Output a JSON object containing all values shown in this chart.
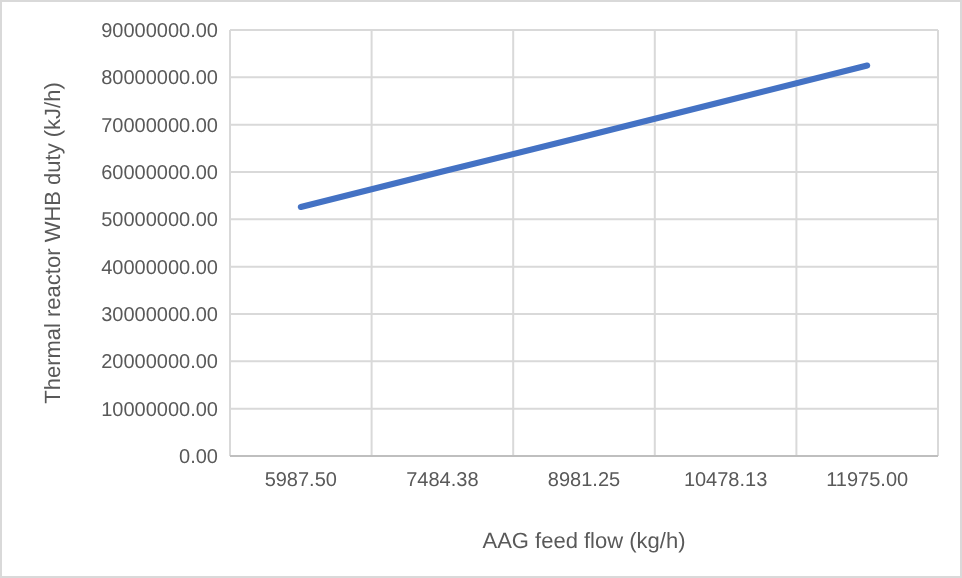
{
  "chart_data": {
    "type": "line",
    "xlabel": "AAG feed flow (kg/h)",
    "ylabel": "Thermal reactor WHB duty (kJ/h)",
    "categories": [
      "5987.50",
      "7484.38",
      "8981.25",
      "10478.13",
      "11975.00"
    ],
    "series": [
      {
        "color": "#4472c4",
        "values": [
          52600000,
          60100000,
          67500000,
          75000000,
          82500000
        ]
      }
    ],
    "ylim": [
      0,
      90000000
    ],
    "yticks": [
      {
        "value": 0,
        "label": "0.00"
      },
      {
        "value": 10000000,
        "label": "10000000.00"
      },
      {
        "value": 20000000,
        "label": "20000000.00"
      },
      {
        "value": 30000000,
        "label": "30000000.00"
      },
      {
        "value": 40000000,
        "label": "40000000.00"
      },
      {
        "value": 50000000,
        "label": "50000000.00"
      },
      {
        "value": 60000000,
        "label": "60000000.00"
      },
      {
        "value": 70000000,
        "label": "70000000.00"
      },
      {
        "value": 80000000,
        "label": "80000000.00"
      },
      {
        "value": 90000000,
        "label": "90000000.00"
      }
    ],
    "grid": true,
    "marker": "none",
    "line_style": "solid"
  }
}
